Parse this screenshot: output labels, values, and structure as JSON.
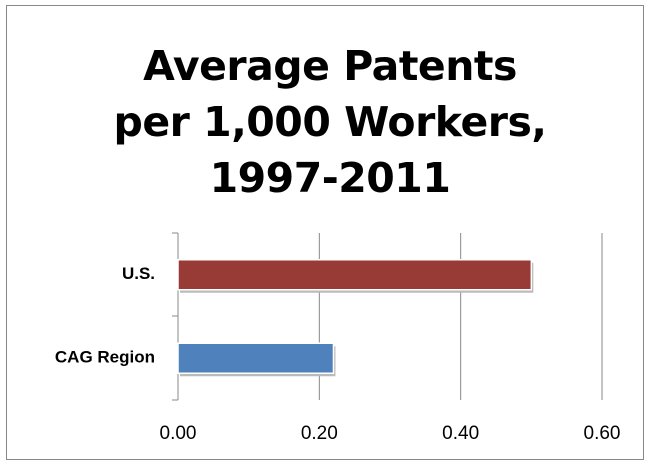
{
  "chart_data": {
    "type": "barh",
    "title": "Average Patents per 1,000 Workers, 1997-2011",
    "categories": [
      "U.S.",
      "CAG Region"
    ],
    "values": [
      0.5,
      0.22
    ],
    "colors": [
      "#983a36",
      "#4f81bd"
    ],
    "xlim": [
      0,
      0.6
    ],
    "xticks": [
      {
        "value": 0,
        "label": "0.00"
      },
      {
        "value": 0.2,
        "label": "0.20"
      },
      {
        "value": 0.4,
        "label": "0.40"
      },
      {
        "value": 0.6,
        "label": "0.60"
      }
    ],
    "grid": true
  }
}
